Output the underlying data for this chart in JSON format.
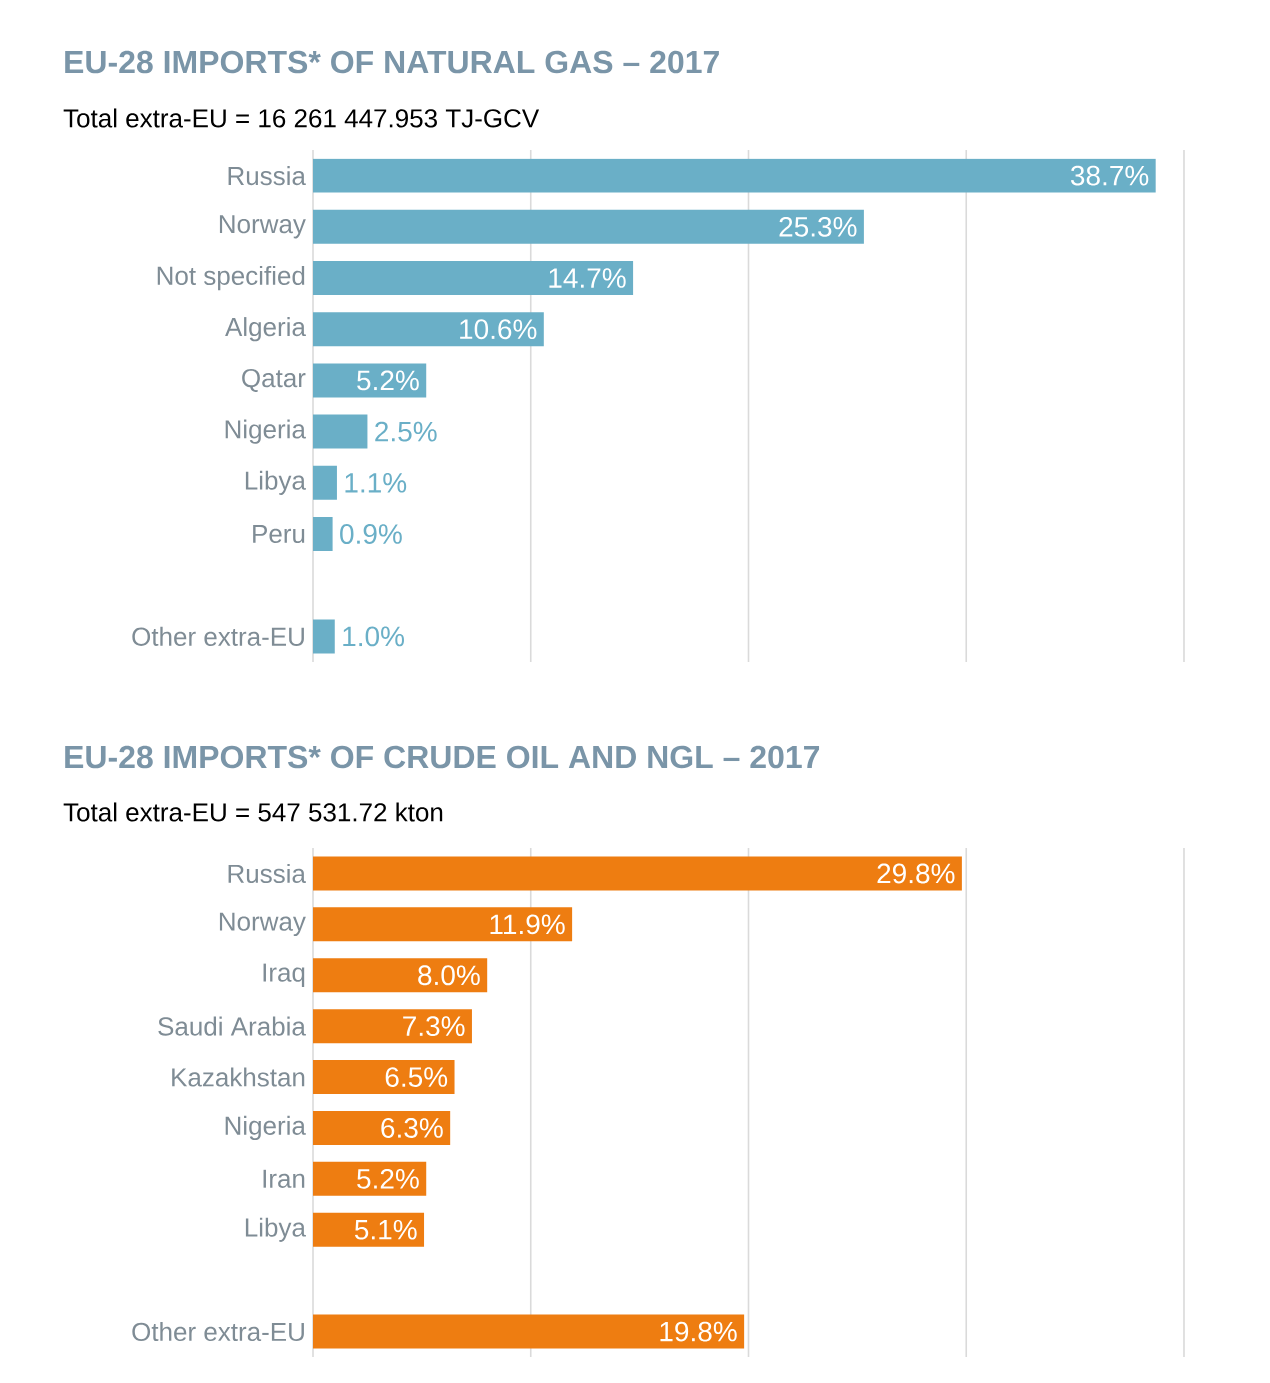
{
  "chart_data": [
    {
      "type": "bar",
      "orientation": "horizontal",
      "title": "EU-28 IMPORTS* OF NATURAL GAS – 2017",
      "subtitle": "Total extra-EU = 16 261 447.953 TJ-GCV",
      "categories": [
        "Russia",
        "Norway",
        "Not specified",
        "Algeria",
        "Qatar",
        "Nigeria",
        "Libya",
        "Peru",
        null,
        "Other extra-EU"
      ],
      "values": [
        38.7,
        25.3,
        14.7,
        10.6,
        5.2,
        2.5,
        1.1,
        0.9,
        null,
        1.0
      ],
      "value_labels": [
        "38.7%",
        "25.3%",
        "14.7%",
        "10.6%",
        "5.2%",
        "2.5%",
        "1.1%",
        "0.9%",
        null,
        "1.0%"
      ],
      "color": "#6aafc7",
      "xlim": [
        0,
        40
      ],
      "xticks": [
        {
          "value": 0,
          "label": null
        },
        {
          "value": 10,
          "label": null
        },
        {
          "value": 20,
          "label": null
        },
        {
          "value": 30,
          "label": null
        },
        {
          "value": 40,
          "label": null
        }
      ],
      "grid": "x",
      "tick_labels": "y"
    },
    {
      "type": "bar",
      "orientation": "horizontal",
      "title": "EU-28 IMPORTS* OF CRUDE OIL AND NGL – 2017",
      "subtitle": "Total extra-EU = 547 531.72 kton",
      "categories": [
        "Russia",
        "Norway",
        "Iraq",
        "Saudi Arabia",
        "Kazakhstan",
        "Nigeria",
        "Iran",
        "Libya",
        null,
        "Other extra-EU"
      ],
      "values": [
        29.8,
        11.9,
        8.0,
        7.3,
        6.5,
        6.3,
        5.2,
        5.1,
        null,
        19.8
      ],
      "value_labels": [
        "29.8%",
        "11.9%",
        "8.0%",
        "7.3%",
        "6.5%",
        "6.3%",
        "5.2%",
        "5.1%",
        null,
        "19.8%"
      ],
      "color": "#ee7d11",
      "xlim": [
        0,
        40
      ],
      "xticks": [
        {
          "value": 0,
          "label": null
        },
        {
          "value": 10,
          "label": null
        },
        {
          "value": 20,
          "label": null
        },
        {
          "value": 30,
          "label": null
        },
        {
          "value": 40,
          "label": null
        }
      ],
      "grid": "x",
      "tick_labels": "y"
    }
  ]
}
